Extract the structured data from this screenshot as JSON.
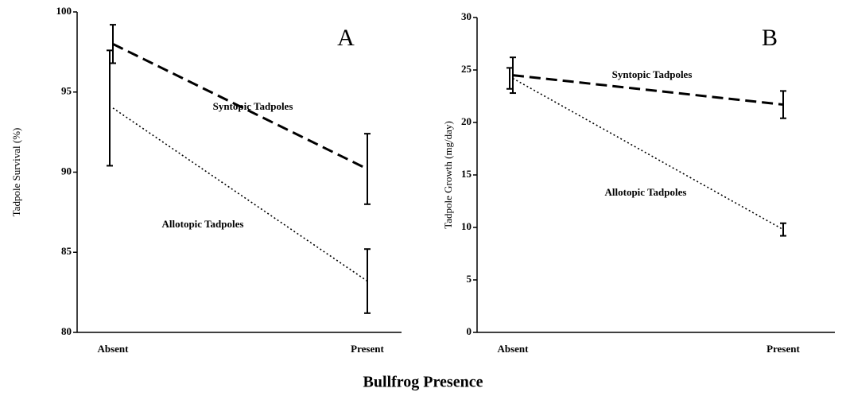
{
  "xlabel": "Bullfrog Presence",
  "chart_data": [
    {
      "type": "line",
      "panel": "A",
      "ylabel": "Tadpole Survival (%)",
      "categories": [
        "Absent",
        "Present"
      ],
      "ylim": [
        80,
        100
      ],
      "yticks": [
        80,
        85,
        90,
        95,
        100
      ],
      "series": [
        {
          "name": "Syntopic Tadpoles",
          "color": "#000",
          "style": "dashed",
          "values": [
            98,
            90.2
          ],
          "errors": [
            1.2,
            2.2
          ]
        },
        {
          "name": "Allotopic Tadpoles",
          "color": "#000",
          "style": "dotted",
          "values": [
            94,
            83.2
          ],
          "errors": [
            3.6,
            2.0
          ]
        }
      ]
    },
    {
      "type": "line",
      "panel": "B",
      "ylabel": "Tadpole Growth (mg/day)",
      "categories": [
        "Absent",
        "Present"
      ],
      "ylim": [
        0,
        30
      ],
      "yticks": [
        0,
        5,
        10,
        15,
        20,
        25,
        30
      ],
      "series": [
        {
          "name": "Syntopic Tadpoles",
          "color": "#000",
          "style": "dashed",
          "values": [
            24.5,
            21.7
          ],
          "errors": [
            1.7,
            1.3
          ]
        },
        {
          "name": "Allotopic Tadpoles",
          "color": "#000",
          "style": "dotted",
          "values": [
            24.2,
            9.8
          ],
          "errors": [
            1.0,
            0.6
          ]
        }
      ]
    }
  ]
}
